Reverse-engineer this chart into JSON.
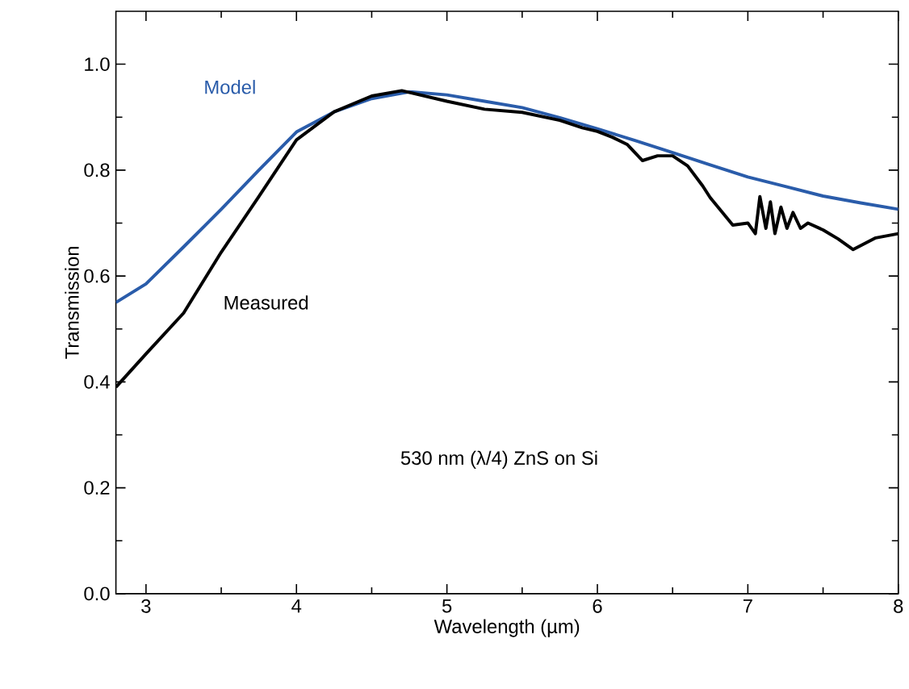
{
  "chart_data": {
    "type": "line",
    "xlabel": "Wavelength (µm)",
    "ylabel": "Transmission",
    "annotations": [
      "530 nm (λ/4) ZnS on Si"
    ],
    "xlim": [
      2.8,
      8
    ],
    "ylim": [
      0,
      1.1
    ],
    "xticks": [
      3,
      4,
      5,
      6,
      7,
      8
    ],
    "yticks": [
      {
        "value": 0,
        "label": "0.0"
      },
      0.2,
      0.4,
      0.6,
      0.8,
      {
        "value": 1,
        "label": "1.0"
      }
    ],
    "grid": false,
    "marker": "none",
    "line_style": "solid",
    "series": [
      {
        "name": "Model",
        "color": "#2a5caa",
        "x": [
          2.8,
          3.0,
          3.25,
          3.5,
          3.75,
          4.0,
          4.25,
          4.5,
          4.75,
          5.0,
          5.25,
          5.5,
          5.75,
          6.0,
          6.25,
          6.5,
          6.75,
          7.0,
          7.25,
          7.5,
          7.75,
          8.0
        ],
        "values": [
          0.55,
          0.585,
          0.655,
          0.726,
          0.8,
          0.872,
          0.91,
          0.935,
          0.948,
          0.942,
          0.93,
          0.918,
          0.899,
          0.878,
          0.856,
          0.833,
          0.81,
          0.787,
          0.769,
          0.751,
          0.738,
          0.726
        ]
      },
      {
        "name": "Measured",
        "color": "#000000",
        "x": [
          2.8,
          3.0,
          3.25,
          3.5,
          3.75,
          4.0,
          4.25,
          4.5,
          4.7,
          5.0,
          5.25,
          5.5,
          5.75,
          5.9,
          6.0,
          6.1,
          6.2,
          6.3,
          6.4,
          6.5,
          6.6,
          6.7,
          6.75,
          6.9,
          7.0,
          7.05,
          7.08,
          7.12,
          7.15,
          7.18,
          7.22,
          7.26,
          7.3,
          7.35,
          7.4,
          7.5,
          7.6,
          7.7,
          7.85,
          8.0
        ],
        "values": [
          0.39,
          0.453,
          0.53,
          0.645,
          0.75,
          0.857,
          0.91,
          0.94,
          0.95,
          0.93,
          0.915,
          0.909,
          0.894,
          0.88,
          0.873,
          0.862,
          0.848,
          0.818,
          0.827,
          0.827,
          0.808,
          0.77,
          0.748,
          0.696,
          0.7,
          0.68,
          0.75,
          0.69,
          0.74,
          0.68,
          0.73,
          0.69,
          0.72,
          0.69,
          0.7,
          0.687,
          0.67,
          0.65,
          0.672,
          0.68
        ]
      }
    ]
  }
}
